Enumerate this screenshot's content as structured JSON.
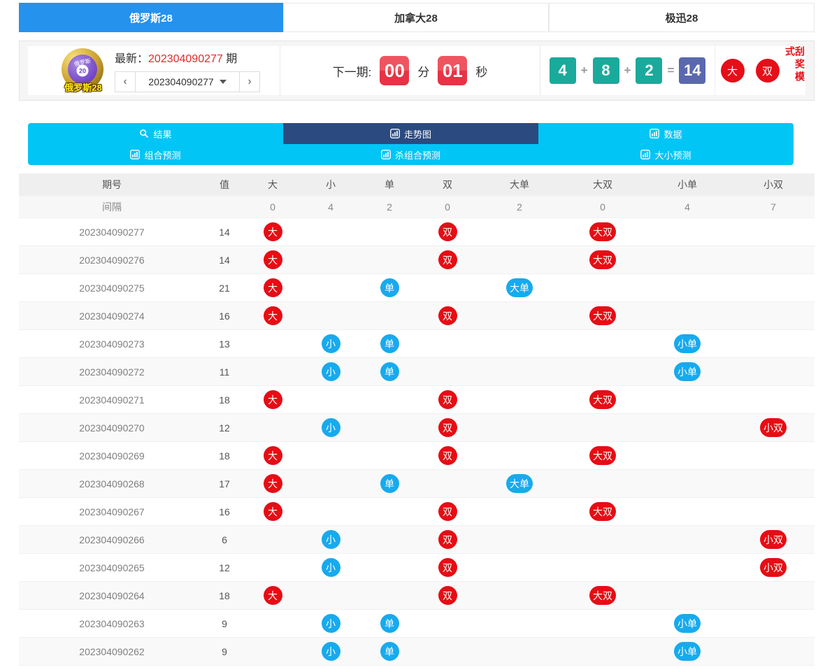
{
  "tabs": [
    {
      "label": "俄罗斯28",
      "active": true
    },
    {
      "label": "加拿大28",
      "active": false
    },
    {
      "label": "极迅28",
      "active": false
    }
  ],
  "header": {
    "logo": {
      "ball_text": "俄罗斯",
      "ball_number": "20",
      "caption": "俄罗斯28"
    },
    "latest": {
      "label": "最新：",
      "issue": "202304090277",
      "suffix": "期"
    },
    "pager": {
      "prev": "‹",
      "value": "202304090277",
      "next": "›"
    },
    "countdown": {
      "label": "下一期:",
      "minutes": "00",
      "minutes_unit": "分",
      "seconds": "01",
      "seconds_unit": "秒"
    },
    "draw": {
      "n1": "4",
      "plus1": "+",
      "n2": "8",
      "plus2": "+",
      "n3": "2",
      "equals": "=",
      "sum": "14"
    },
    "result_badges": [
      {
        "text": "大"
      },
      {
        "text": "双"
      }
    ],
    "mode_text": "刮奖模式"
  },
  "nav": {
    "row1": [
      {
        "label": "结果",
        "icon": "search-icon",
        "active": false
      },
      {
        "label": "走势图",
        "icon": "chart-icon",
        "active": true
      },
      {
        "label": "数据",
        "icon": "chart-icon",
        "active": false
      }
    ],
    "row2": [
      {
        "label": "组合预测",
        "icon": "chart-icon",
        "active": false
      },
      {
        "label": "杀组合预测",
        "icon": "chart-icon",
        "active": false
      },
      {
        "label": "大小预测",
        "icon": "chart-icon",
        "active": false
      }
    ]
  },
  "table": {
    "headers": [
      "期号",
      "值",
      "大",
      "小",
      "单",
      "双",
      "大单",
      "大双",
      "小单",
      "小双"
    ],
    "interval": {
      "label": "间隔",
      "values": {
        "大": "0",
        "小": "4",
        "单": "2",
        "双": "0",
        "大单": "2",
        "大双": "0",
        "小单": "4",
        "小双": "7"
      }
    },
    "mark_columns": [
      "大",
      "小",
      "单",
      "双",
      "大单",
      "大双",
      "小单",
      "小双"
    ],
    "mark_colors": {
      "大": "red",
      "小": "blue",
      "单": "blue",
      "双": "red",
      "大单": "blue",
      "大双": "red",
      "小单": "blue",
      "小双": "red"
    },
    "rows": [
      {
        "issue": "202304090277",
        "value": "14",
        "marks": [
          "大",
          "双",
          "大双"
        ]
      },
      {
        "issue": "202304090276",
        "value": "14",
        "marks": [
          "大",
          "双",
          "大双"
        ]
      },
      {
        "issue": "202304090275",
        "value": "21",
        "marks": [
          "大",
          "单",
          "大单"
        ]
      },
      {
        "issue": "202304090274",
        "value": "16",
        "marks": [
          "大",
          "双",
          "大双"
        ]
      },
      {
        "issue": "202304090273",
        "value": "13",
        "marks": [
          "小",
          "单",
          "小单"
        ]
      },
      {
        "issue": "202304090272",
        "value": "11",
        "marks": [
          "小",
          "单",
          "小单"
        ]
      },
      {
        "issue": "202304090271",
        "value": "18",
        "marks": [
          "大",
          "双",
          "大双"
        ]
      },
      {
        "issue": "202304090270",
        "value": "12",
        "marks": [
          "小",
          "双",
          "小双"
        ]
      },
      {
        "issue": "202304090269",
        "value": "18",
        "marks": [
          "大",
          "双",
          "大双"
        ]
      },
      {
        "issue": "202304090268",
        "value": "17",
        "marks": [
          "大",
          "单",
          "大单"
        ]
      },
      {
        "issue": "202304090267",
        "value": "16",
        "marks": [
          "大",
          "双",
          "大双"
        ]
      },
      {
        "issue": "202304090266",
        "value": "6",
        "marks": [
          "小",
          "双",
          "小双"
        ]
      },
      {
        "issue": "202304090265",
        "value": "12",
        "marks": [
          "小",
          "双",
          "小双"
        ]
      },
      {
        "issue": "202304090264",
        "value": "18",
        "marks": [
          "大",
          "双",
          "大双"
        ]
      },
      {
        "issue": "202304090263",
        "value": "9",
        "marks": [
          "小",
          "单",
          "小单"
        ]
      },
      {
        "issue": "202304090262",
        "value": "9",
        "marks": [
          "小",
          "单",
          "小单"
        ]
      }
    ]
  },
  "colors": {
    "tab_active_blue": "#2592ee",
    "nav_cyan": "#00c5f5",
    "nav_active_navy": "#2b4a80",
    "badge_red": "#e60d15",
    "badge_blue": "#17aaee",
    "number_teal": "#1aaa9c",
    "sum_indigo": "#5a68ae",
    "countdown_red": "#e94050",
    "latest_issue_red": "#e32a2a"
  }
}
